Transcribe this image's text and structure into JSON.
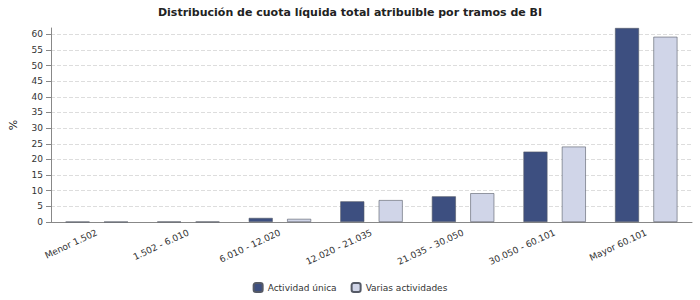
{
  "chart_data": {
    "type": "bar",
    "title": "Distribución de cuota líquida total atribuible por tramos de BI",
    "y_label": "%",
    "categories": [
      "Menor 1.502",
      "1.502 - 6.010",
      "6.010 - 12.020",
      "12.020 - 21.035",
      "21.035 - 30.050",
      "30.050 - 60.101",
      "Mayor 60.101"
    ],
    "series": [
      {
        "name": "Actividad única",
        "color": "#3d4f80",
        "values": [
          0.05,
          0.1,
          1.3,
          6.6,
          8.2,
          22.5,
          62
        ]
      },
      {
        "name": "Varias actividades",
        "color": "#d0d5e8",
        "values": [
          0.05,
          0.1,
          1.0,
          7.0,
          9.2,
          24.1,
          59.2
        ]
      }
    ],
    "ylim": [
      0,
      62
    ],
    "yticks": [
      0,
      5,
      10,
      15,
      20,
      25,
      30,
      35,
      40,
      45,
      50,
      55,
      60
    ],
    "grid": true,
    "legend": "bottom"
  }
}
